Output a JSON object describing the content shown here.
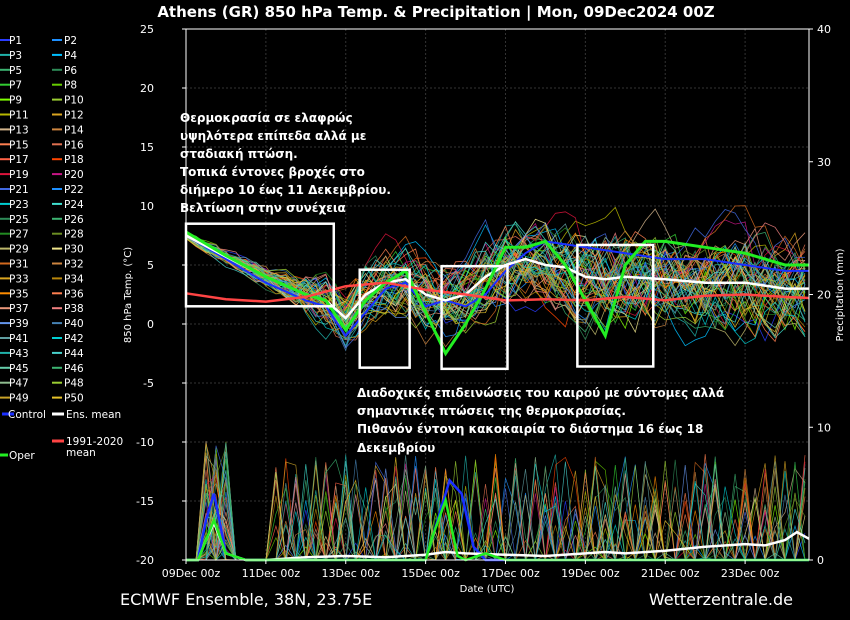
{
  "chart_data": {
    "type": "line",
    "title": "Athens  (GR)  850 hPa Temp. & Precipitation | Mon, 09Dec2024 00Z",
    "xlabel": "Date (UTC)",
    "ylabel": "850 hPa Temp. (°C)",
    "y2label": "Precipitation (mm)",
    "x_ticks": [
      "09Dec 00z",
      "11Dec 00z",
      "13Dec 00z",
      "15Dec 00z",
      "17Dec 00z",
      "19Dec 00z",
      "21Dec 00z",
      "23Dec 00z"
    ],
    "xlim_days": [
      0,
      15.6
    ],
    "ylim": [
      -20,
      25
    ],
    "y_ticks": [
      -20,
      -15,
      -10,
      -5,
      0,
      5,
      10,
      15,
      20,
      25
    ],
    "y2lim": [
      0,
      40
    ],
    "y2_ticks": [
      0,
      10,
      20,
      30,
      40
    ],
    "grid": true,
    "legend_placement": "left",
    "legend_entries": [
      "P1",
      "P2",
      "P3",
      "P4",
      "P5",
      "P6",
      "P7",
      "P8",
      "P9",
      "P10",
      "P11",
      "P12",
      "P13",
      "P14",
      "P15",
      "P16",
      "P17",
      "P18",
      "P19",
      "P20",
      "P21",
      "P22",
      "P23",
      "P24",
      "P25",
      "P26",
      "P27",
      "P28",
      "P29",
      "P30",
      "P31",
      "P32",
      "P33",
      "P34",
      "P35",
      "P36",
      "P37",
      "P38",
      "P39",
      "P40",
      "P41",
      "P42",
      "P43",
      "P44",
      "P45",
      "P46",
      "P47",
      "P48",
      "P49",
      "P50"
    ],
    "member_colors": [
      "#2a3cff",
      "#1e90ff",
      "#20b2aa",
      "#00bfff",
      "#3cb371",
      "#2e8b57",
      "#32cd32",
      "#66cd00",
      "#7fff00",
      "#9acd32",
      "#b8b800",
      "#daa520",
      "#d2b48c",
      "#cd853f",
      "#ff7f50",
      "#e07050",
      "#ff6347",
      "#ff4500",
      "#dc143c",
      "#c71585",
      "#4169e1",
      "#1e90ff",
      "#00ced1",
      "#40e0d0",
      "#2e8b57",
      "#3cb371",
      "#228b22",
      "#6b8e23",
      "#bdb76b",
      "#f0e68c",
      "#d2691e",
      "#cd853f",
      "#daa520",
      "#b8860b",
      "#ff8c00",
      "#ff7f50",
      "#e9967a",
      "#f08080",
      "#6495ed",
      "#4682b4",
      "#5f9ea0",
      "#00ced1",
      "#20b2aa",
      "#48d1cc",
      "#66cdaa",
      "#3cb371",
      "#8fbc8f",
      "#9acd32",
      "#c9a227",
      "#e6c229"
    ],
    "series": [
      {
        "name": "Control",
        "color": "#1a2fff",
        "x": [
          0,
          1,
          2,
          3,
          3.5,
          4,
          4.5,
          5,
          5.5,
          6,
          6.5,
          7,
          7.5,
          8,
          8.5,
          9,
          10,
          11,
          12,
          13,
          14,
          15,
          15.6
        ],
        "values": [
          7.5,
          5.5,
          3.5,
          2,
          1.5,
          -1,
          1,
          3,
          3.5,
          1.5,
          2,
          1.5,
          2.5,
          4.5,
          6,
          7,
          6.5,
          6,
          5.5,
          5.5,
          5,
          4.5,
          4.5
        ]
      },
      {
        "name": "Ens. mean",
        "color": "#ffffff",
        "x": [
          0,
          1,
          2,
          3,
          3.5,
          4,
          4.5,
          5,
          5.5,
          6,
          6.5,
          7,
          7.5,
          8,
          8.5,
          9,
          9.5,
          10,
          10.5,
          11,
          12,
          13,
          14,
          15,
          15.6
        ],
        "values": [
          7.5,
          5.7,
          4,
          2.5,
          2,
          0.5,
          2.5,
          3.5,
          3.8,
          2.5,
          2,
          2.5,
          4,
          5,
          5.5,
          5,
          4.8,
          4,
          3.8,
          4,
          3.8,
          3.5,
          3.5,
          3,
          3
        ]
      },
      {
        "name": "Oper",
        "color": "#22ee22",
        "x": [
          0,
          1,
          2,
          3,
          3.5,
          4,
          4.5,
          5,
          5.5,
          6,
          6.5,
          7,
          7.5,
          8,
          8.5,
          9,
          9.5,
          10,
          10.5,
          11,
          11.5,
          12,
          13,
          14,
          15,
          15.6
        ],
        "values": [
          7.8,
          5.8,
          4,
          2.5,
          2,
          -0.5,
          2,
          3.5,
          4.5,
          1,
          -2.5,
          0,
          3,
          6.5,
          6.5,
          7,
          5,
          2,
          -1,
          5,
          7,
          7,
          6.5,
          6,
          5,
          5
        ]
      },
      {
        "name": "1991-2020 mean",
        "color": "#ff4444",
        "x": [
          0,
          1,
          2,
          3,
          4,
          5,
          6,
          7,
          8,
          9,
          10,
          11,
          12,
          13,
          14,
          15,
          15.6
        ],
        "values": [
          2.6,
          2.1,
          1.9,
          2.3,
          3.2,
          3.5,
          2.9,
          2.5,
          2.0,
          2.1,
          2.0,
          2.3,
          2.0,
          2.4,
          2.5,
          2.3,
          2.2
        ]
      }
    ],
    "precip_series": [
      {
        "name": "Control",
        "color": "#1a2fff",
        "x": [
          0,
          0.3,
          0.5,
          0.7,
          1.0,
          1.5,
          2,
          3,
          4,
          5,
          6,
          6.3,
          6.6,
          6.9,
          7.2,
          7.5,
          8,
          9,
          10,
          11,
          12,
          13,
          14,
          15.6
        ],
        "values": [
          0,
          0,
          3,
          5,
          0.5,
          0,
          0,
          0,
          0,
          0,
          0,
          3,
          6,
          5,
          1,
          0,
          0,
          0,
          0,
          0,
          0,
          0,
          0,
          0
        ]
      },
      {
        "name": "Ens. mean",
        "color": "#ffffff",
        "x": [
          0,
          0.3,
          0.5,
          0.7,
          1.0,
          1.5,
          2,
          3,
          4,
          5,
          6,
          6.5,
          7,
          8,
          9,
          10,
          10.5,
          11,
          12,
          13,
          14,
          14.5,
          15,
          15.3,
          15.6
        ],
        "values": [
          0,
          0,
          1.5,
          2.8,
          0.5,
          0,
          0,
          0.2,
          0.3,
          0.2,
          0.4,
          0.6,
          0.5,
          0.4,
          0.3,
          0.5,
          0.6,
          0.5,
          0.7,
          1.0,
          1.2,
          1.1,
          1.5,
          2.1,
          1.6
        ]
      },
      {
        "name": "Oper",
        "color": "#22ee22",
        "x": [
          0,
          0.3,
          0.5,
          0.7,
          1.0,
          1.5,
          2,
          3,
          4,
          5,
          6,
          6.2,
          6.5,
          6.8,
          7,
          7.5,
          8,
          9,
          10,
          11,
          12,
          13,
          14,
          15.6
        ],
        "values": [
          0,
          0,
          1.5,
          3,
          0.5,
          0,
          0,
          0,
          0,
          0,
          0,
          2,
          4.5,
          0.3,
          0,
          0.5,
          0,
          0,
          0,
          0,
          0,
          0,
          0,
          0
        ]
      }
    ]
  },
  "legend_extra": {
    "control_label": "Control",
    "mean_label": "Ens. mean",
    "clim_label_1": "1991-2020",
    "clim_label_2": "mean",
    "oper_label": "Oper"
  },
  "annotations": {
    "top_lines": [
      "Θερμοκρασία σε ελαφρώς",
      "υψηλότερα επίπεδα αλλά με",
      "σταδιακή πτώση.",
      "Τοπικά έντονες βροχές στο",
      "διήμερο 10 έως 11 Δεκεμβρίου.",
      "Βελτίωση στην συνέχεια"
    ],
    "bottom_lines": [
      "Διαδοχικές επιδεινώσεις του καιρού με σύντομες αλλά",
      "σημαντικές πτώσεις της θερμοκρασίας.",
      "Πιθανόν έντονη κακοκαιρία το διάστημα 16 έως 18",
      "Δεκεμβρίου"
    ],
    "boxes": [
      {
        "x0": 0,
        "x1": 3.7,
        "y0": 1.5,
        "y1": 8.5
      },
      {
        "x0": 4.35,
        "x1": 5.6,
        "y0": -3.7,
        "y1": 4.6
      },
      {
        "x0": 6.4,
        "x1": 8.05,
        "y0": -3.8,
        "y1": 4.9
      },
      {
        "x0": 9.8,
        "x1": 11.7,
        "y0": -3.6,
        "y1": 6.7
      }
    ]
  },
  "footer": {
    "left": "ECMWF Ensemble, 38N, 23.75E",
    "right": "Wetterzentrale.de"
  }
}
